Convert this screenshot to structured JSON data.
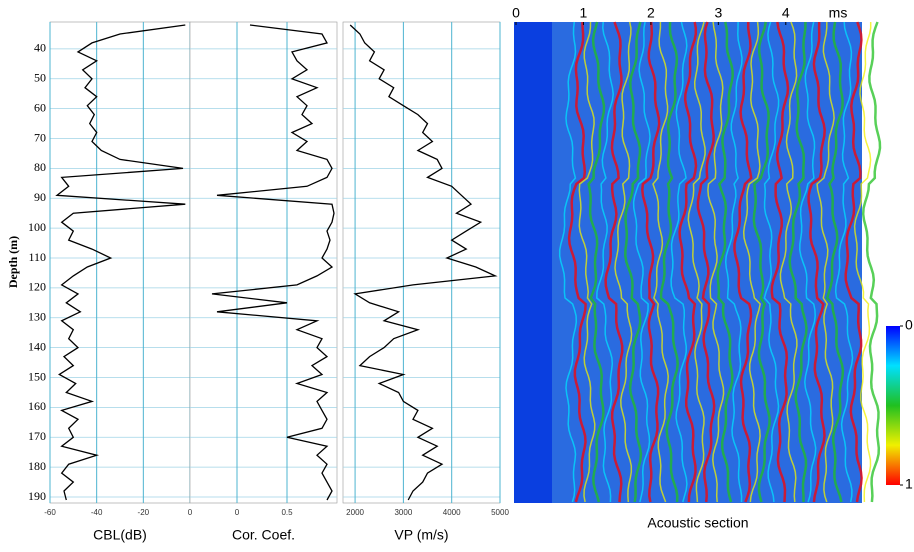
{
  "chart_data": [
    {
      "type": "line",
      "xlabel": "CBL(dB)",
      "ylabel": "Depth (m)",
      "xlim": [
        -60,
        0
      ],
      "xticks": [
        -60,
        -40,
        -20,
        0
      ],
      "ylim": [
        31,
        192
      ],
      "yticks": [
        40,
        50,
        60,
        70,
        80,
        90,
        100,
        110,
        120,
        130,
        140,
        150,
        160,
        170,
        180,
        190
      ],
      "grid": true,
      "y": [
        32,
        35,
        38,
        41,
        44,
        47,
        50,
        53,
        56,
        59,
        62,
        65,
        68,
        71,
        74,
        77,
        80,
        83,
        86,
        89,
        92,
        95,
        98,
        101,
        104,
        107,
        110,
        113,
        116,
        119,
        122,
        125,
        128,
        131,
        134,
        137,
        140,
        143,
        146,
        149,
        152,
        155,
        158,
        161,
        164,
        167,
        170,
        173,
        176,
        179,
        182,
        185,
        188,
        191
      ],
      "series": [
        {
          "color": "#000000",
          "values": [
            -2,
            -30,
            -42,
            -48,
            -40,
            -46,
            -42,
            -45,
            -40,
            -44,
            -41,
            -43,
            -40,
            -42,
            -38,
            -30,
            -3,
            -55,
            -52,
            -57,
            -2,
            -50,
            -55,
            -50,
            -52,
            -42,
            -34,
            -44,
            -50,
            -55,
            -48,
            -53,
            -47,
            -55,
            -50,
            -52,
            -48,
            -54,
            -50,
            -56,
            -49,
            -53,
            -42,
            -55,
            -48,
            -52,
            -50,
            -55,
            -40,
            -52,
            -55,
            -50,
            -54,
            -53
          ]
        }
      ]
    },
    {
      "type": "line",
      "xlabel": "Cor. Coef.",
      "xlim": [
        -0.47,
        1
      ],
      "xticks": [
        0,
        0.5
      ],
      "ylim": [
        31,
        192
      ],
      "grid": true,
      "y": [
        32,
        35,
        38,
        41,
        44,
        47,
        50,
        53,
        56,
        59,
        62,
        65,
        68,
        71,
        74,
        77,
        80,
        83,
        86,
        89,
        92,
        95,
        98,
        101,
        104,
        107,
        110,
        113,
        116,
        119,
        122,
        125,
        128,
        131,
        134,
        137,
        140,
        143,
        146,
        149,
        152,
        155,
        158,
        161,
        164,
        167,
        170,
        173,
        176,
        179,
        182,
        185,
        188,
        191
      ],
      "series": [
        {
          "color": "#000000",
          "values": [
            0.13,
            0.85,
            0.9,
            0.55,
            0.6,
            0.7,
            0.55,
            0.8,
            0.6,
            0.7,
            0.65,
            0.75,
            0.55,
            0.7,
            0.6,
            0.9,
            0.95,
            0.9,
            0.7,
            -0.2,
            0.95,
            0.97,
            0.95,
            0.9,
            0.93,
            0.9,
            0.85,
            0.95,
            0.8,
            0.6,
            -0.25,
            0.5,
            -0.2,
            0.8,
            0.6,
            0.85,
            0.8,
            0.9,
            0.75,
            0.85,
            0.6,
            0.9,
            0.8,
            0.85,
            0.9,
            0.85,
            0.5,
            0.9,
            0.8,
            0.9,
            0.85,
            0.9,
            0.95,
            0.9
          ]
        }
      ]
    },
    {
      "type": "line",
      "xlabel": "VP (m/s)",
      "xlim": [
        1750,
        5000
      ],
      "xticks": [
        2000,
        3000,
        4000,
        5000
      ],
      "ylim": [
        31,
        192
      ],
      "grid": true,
      "y": [
        32,
        35,
        38,
        41,
        44,
        47,
        50,
        53,
        56,
        59,
        62,
        65,
        68,
        71,
        74,
        77,
        80,
        83,
        86,
        89,
        92,
        95,
        98,
        101,
        104,
        107,
        110,
        113,
        116,
        119,
        122,
        125,
        128,
        131,
        134,
        137,
        140,
        143,
        146,
        149,
        152,
        155,
        158,
        161,
        164,
        167,
        170,
        173,
        176,
        179,
        182,
        185,
        188,
        191
      ],
      "series": [
        {
          "color": "#000000",
          "values": [
            1900,
            2100,
            2200,
            2400,
            2300,
            2600,
            2500,
            2800,
            2700,
            3000,
            3300,
            3500,
            3400,
            3600,
            3300,
            3700,
            3800,
            3500,
            4000,
            4200,
            4400,
            4100,
            4600,
            4300,
            4000,
            4300,
            3900,
            4500,
            4900,
            3200,
            2000,
            2300,
            2900,
            2600,
            3300,
            2800,
            2600,
            2300,
            2100,
            3000,
            2500,
            2900,
            3000,
            3300,
            3200,
            3600,
            3300,
            3700,
            3400,
            3800,
            3500,
            3400,
            3200,
            3100
          ]
        }
      ]
    },
    {
      "type": "heatmap",
      "xlabel": "Acoustic section",
      "xunit": "ms",
      "xlim": [
        0,
        5.13
      ],
      "xticks": [
        0,
        1,
        2,
        3,
        4
      ],
      "colorbar": {
        "ticks": [
          0,
          1
        ],
        "colors": [
          "#0000ff",
          "#00e0ff",
          "#20c020",
          "#f0f000",
          "#ff0000"
        ]
      }
    }
  ]
}
